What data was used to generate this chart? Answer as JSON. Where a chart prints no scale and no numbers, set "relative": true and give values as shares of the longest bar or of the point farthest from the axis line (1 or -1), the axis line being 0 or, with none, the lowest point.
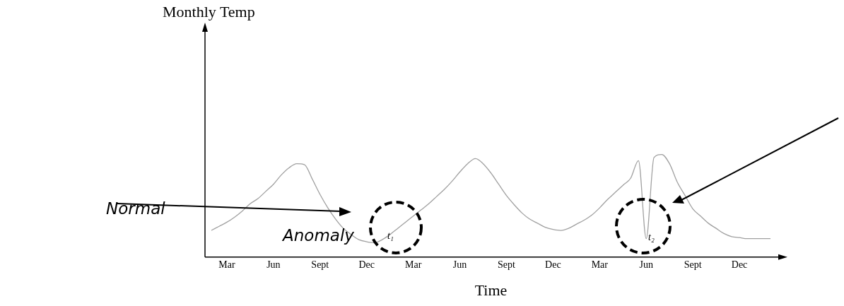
{
  "chart_data": {
    "type": "line",
    "relative": true,
    "xlabel": "Time",
    "categories": [
      null,
      null,
      "Mar",
      null,
      null,
      null,
      null,
      null,
      "Jun",
      null,
      null,
      null,
      null,
      null,
      "Sept",
      null,
      null,
      null,
      null,
      null,
      "Dec",
      null,
      null,
      null,
      null,
      null,
      "Mar",
      null,
      null,
      null,
      null,
      null,
      "Jun",
      null,
      null,
      null,
      null,
      null,
      "Sept",
      null,
      null,
      null,
      null,
      null,
      "Dec",
      null,
      null,
      null,
      null,
      null,
      "Mar",
      null,
      null,
      null,
      null,
      null,
      "Jun",
      null,
      null,
      null,
      null,
      null,
      "Sept",
      null,
      null,
      null,
      null,
      null,
      "Dec",
      null,
      null,
      null,
      null
    ],
    "values": [
      0.26,
      0.3,
      0.34,
      0.39,
      0.45,
      0.52,
      0.57,
      0.64,
      0.71,
      0.8,
      0.87,
      0.91,
      0.9,
      0.76,
      0.61,
      0.48,
      0.37,
      0.28,
      0.22,
      0.17,
      0.15,
      0.14,
      0.17,
      0.22,
      0.28,
      0.34,
      0.4,
      0.46,
      0.52,
      0.59,
      0.66,
      0.74,
      0.83,
      0.91,
      0.96,
      0.91,
      0.82,
      0.71,
      0.6,
      0.51,
      0.43,
      0.37,
      0.33,
      0.29,
      0.27,
      0.26,
      0.28,
      0.32,
      0.36,
      0.41,
      0.48,
      0.56,
      0.63,
      0.7,
      0.77,
      0.94,
      0.18,
      0.97,
      1.0,
      0.91,
      0.73,
      0.6,
      0.47,
      0.4,
      0.33,
      0.28,
      0.23,
      0.2,
      0.19,
      0.18,
      0.18,
      0.18,
      0.18
    ],
    "color": "#a0a0a0",
    "marker": "none",
    "line_style": "solid",
    "legend": false,
    "annotations": [
      "Monthly Temp",
      "Normal",
      "Anomaly",
      "t₁",
      "t₂"
    ]
  }
}
